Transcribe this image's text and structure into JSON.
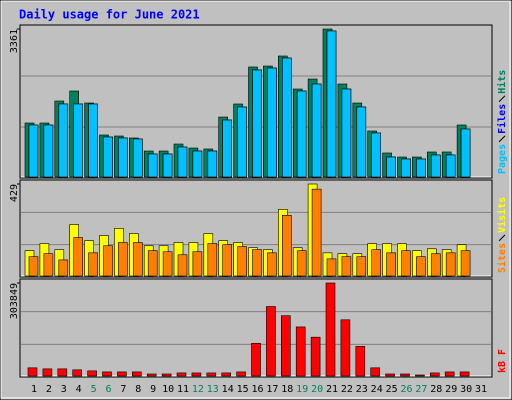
{
  "chart_data": [
    {
      "type": "bar",
      "title": "Daily usage for June 2021",
      "ylim": [
        0,
        3361
      ],
      "yticks": [
        3361
      ],
      "series": [
        {
          "name": "Hits",
          "color": "#00805c",
          "values": [
            1226,
            1226,
            1726,
            1953,
            1680,
            954,
            931,
            886,
            590,
            590,
            749,
            658,
            636,
            1362,
            1658,
            2498,
            2520,
            2748,
            1998,
            2225,
            3361,
            2112,
            1680,
            1045,
            545,
            454,
            454,
            568,
            568,
            1181,
            0
          ]
        },
        {
          "name": "Files",
          "color": "#0000ff",
          "values": [
            1181,
            1181,
            1658,
            1658,
            1658,
            908,
            886,
            863,
            522,
            522,
            681,
            590,
            590,
            1294,
            1590,
            2430,
            2475,
            2702,
            1953,
            2112,
            3316,
            1998,
            1590,
            999,
            454,
            409,
            409,
            500,
            500,
            1090,
            0
          ]
        },
        {
          "name": "Pages",
          "color": "#00c0ff",
          "values": [
            1181,
            1181,
            1658,
            1658,
            1658,
            908,
            886,
            863,
            522,
            522,
            681,
            590,
            590,
            1294,
            1590,
            2430,
            2475,
            2702,
            1953,
            2112,
            3316,
            1998,
            1590,
            999,
            454,
            409,
            409,
            500,
            500,
            1090,
            0
          ]
        }
      ]
    },
    {
      "type": "bar",
      "ylim": [
        0,
        429
      ],
      "yticks": [
        429
      ],
      "series": [
        {
          "name": "Visits",
          "color": "#ffff00",
          "values": [
            118,
            151,
            123,
            240,
            165,
            189,
            222,
            198,
            141,
            141,
            156,
            156,
            198,
            165,
            156,
            132,
            123,
            311,
            132,
            429,
            108,
            104,
            104,
            151,
            151,
            151,
            118,
            127,
            123,
            146,
            0
          ]
        },
        {
          "name": "Sites",
          "color": "#ff8000",
          "values": [
            90,
            104,
            75,
            179,
            108,
            141,
            156,
            156,
            118,
            113,
            99,
            113,
            151,
            146,
            137,
            123,
            108,
            283,
            118,
            405,
            80,
            90,
            90,
            123,
            108,
            118,
            90,
            104,
            108,
            118,
            0
          ]
        }
      ]
    },
    {
      "type": "bar",
      "ylim": [
        0,
        303849
      ],
      "yticks": [
        303849
      ],
      "series": [
        {
          "name": "KBytes",
          "label": "kB F",
          "color": "#ff0000",
          "values": [
            26712,
            23373,
            23373,
            20034,
            16695,
            13356,
            13356,
            13356,
            6678,
            6678,
            10017,
            10017,
            10017,
            10017,
            13356,
            106848,
            227052,
            197000,
            160272,
            126882,
            303849,
            183645,
            96831,
            26712,
            6678,
            6678,
            3339,
            10017,
            13356,
            13356,
            0
          ]
        }
      ],
      "categories": [
        "1",
        "2",
        "3",
        "4",
        "5",
        "6",
        "7",
        "8",
        "9",
        "10",
        "11",
        "12",
        "13",
        "14",
        "15",
        "16",
        "17",
        "18",
        "19",
        "20",
        "21",
        "22",
        "23",
        "24",
        "25",
        "26",
        "27",
        "28",
        "29",
        "30",
        "31"
      ],
      "category_color": "#000000",
      "weekend_color": "#00805c",
      "weekend_indices": [
        4,
        5,
        11,
        12,
        18,
        19,
        25,
        26
      ]
    }
  ]
}
